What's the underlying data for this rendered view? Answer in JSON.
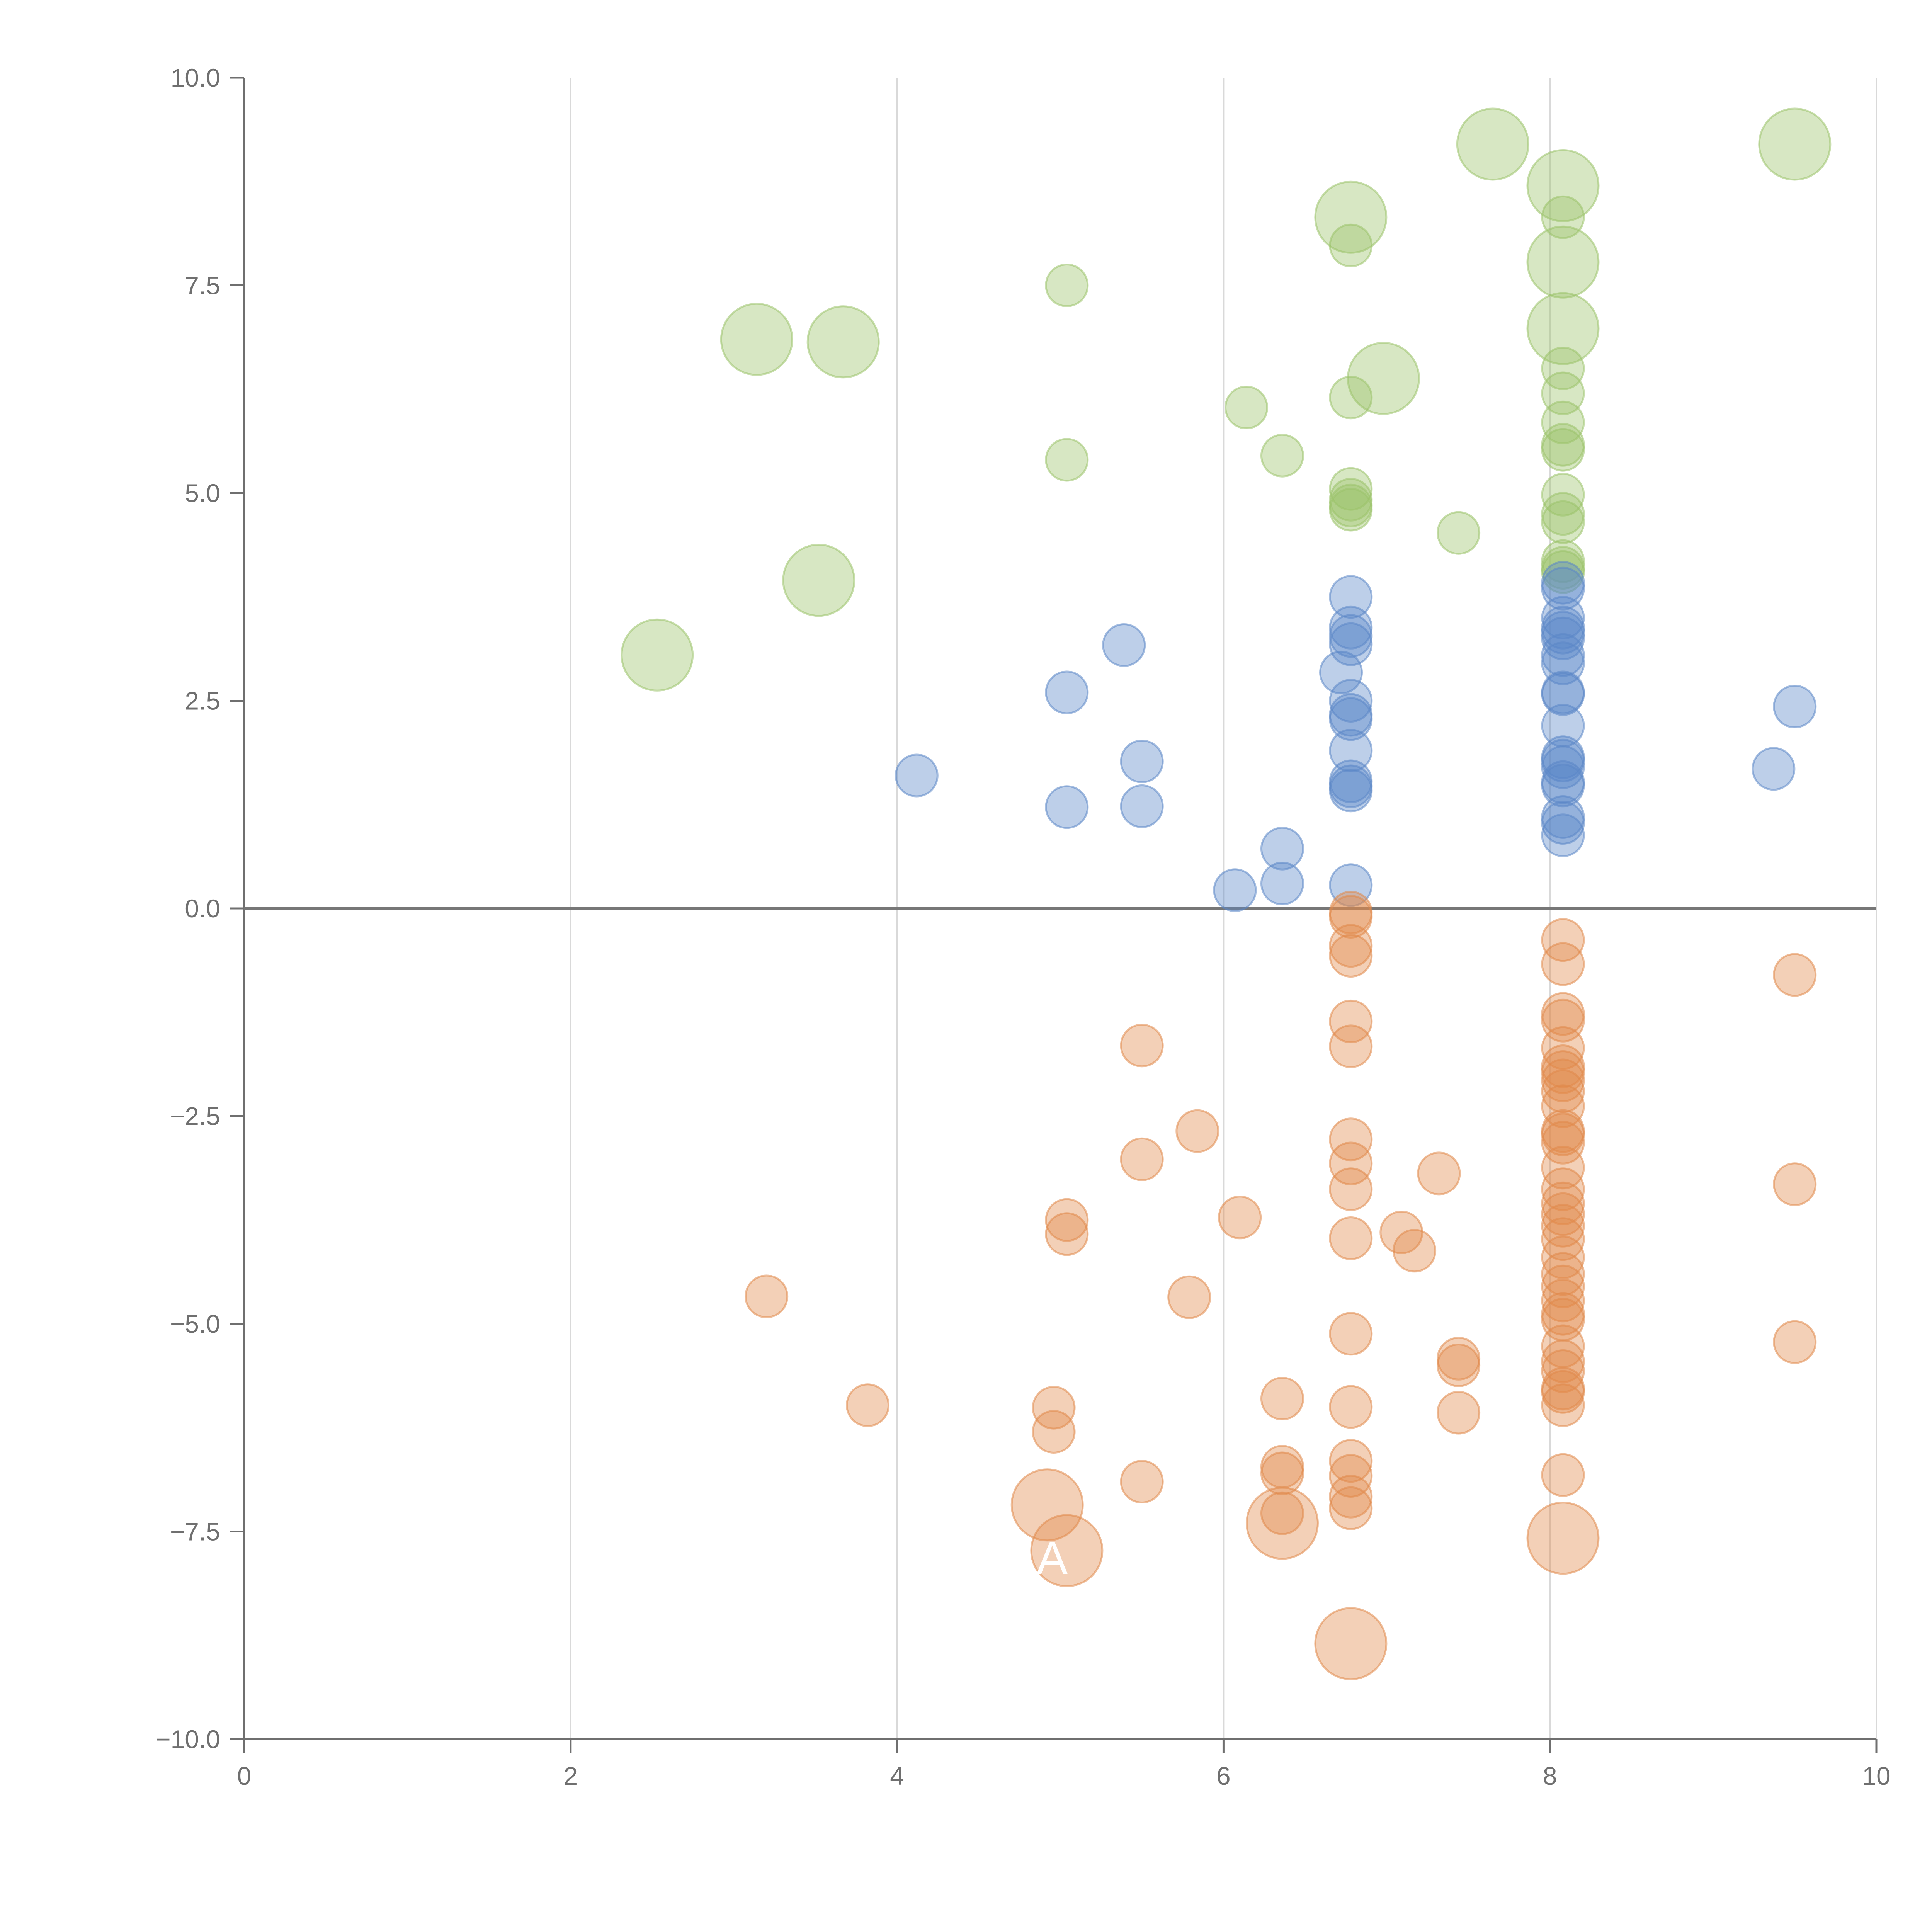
{
  "chart_data": {
    "type": "scatter",
    "title": "",
    "xlabel": "",
    "ylabel": "",
    "xlim": [
      0,
      10
    ],
    "ylim": [
      -10,
      10
    ],
    "grid": {
      "vertical": true,
      "horizontal": false
    },
    "baseline": 0,
    "x_ticks": [
      0,
      2,
      4,
      6,
      8,
      10
    ],
    "x_tick_labels": [
      "0",
      "2",
      "4",
      "6",
      "8",
      "10"
    ],
    "y_ticks": [
      10,
      7.5,
      5,
      2.5,
      0,
      -2.5,
      -5,
      -7.5,
      -10
    ],
    "y_tick_labels": [
      "10.0",
      "7.5",
      "5.0",
      "2.5",
      "0.0",
      "−2.5",
      "−5.0",
      "−7.5",
      "−10.0"
    ],
    "colors": {
      "green": "#9bc36a",
      "blue": "#5b87c7",
      "orange": "#e0894a",
      "axis": "#6f6f6f",
      "grid": "#d9d9d9",
      "baseline": "#777777"
    },
    "series": [
      {
        "name": "green",
        "color": "#9bc36a",
        "points": [
          [
            9.5,
            9.2,
            2
          ],
          [
            7.65,
            9.2,
            2
          ],
          [
            8.08,
            8.7,
            2
          ],
          [
            6.78,
            8.32,
            2
          ],
          [
            8.08,
            7.78,
            2
          ],
          [
            8.08,
            6.98,
            2
          ],
          [
            6.98,
            6.38,
            2
          ],
          [
            3.14,
            6.85,
            2
          ],
          [
            3.67,
            6.82,
            2
          ],
          [
            3.52,
            3.95,
            2
          ],
          [
            2.53,
            3.05,
            2
          ],
          [
            8.08,
            8.32,
            1
          ],
          [
            6.78,
            7.98,
            1
          ],
          [
            5.04,
            7.5,
            1
          ],
          [
            6.14,
            6.03,
            1
          ],
          [
            6.78,
            6.15,
            1
          ],
          [
            5.04,
            5.4,
            1
          ],
          [
            6.36,
            5.45,
            1
          ],
          [
            7.44,
            4.52,
            1
          ],
          [
            6.78,
            5.05,
            1
          ],
          [
            6.78,
            4.92,
            1
          ],
          [
            6.78,
            4.85,
            1
          ],
          [
            6.78,
            4.8,
            1
          ],
          [
            8.08,
            6.5,
            1
          ],
          [
            8.08,
            6.2,
            1
          ],
          [
            8.08,
            5.85,
            1
          ],
          [
            8.08,
            5.58,
            1
          ],
          [
            8.08,
            5.52,
            1
          ],
          [
            8.08,
            4.98,
            1
          ],
          [
            8.08,
            4.75,
            1
          ],
          [
            8.08,
            4.65,
            1
          ],
          [
            8.08,
            4.18,
            1
          ],
          [
            8.08,
            4.1,
            1
          ],
          [
            8.08,
            4.05,
            1
          ]
        ]
      },
      {
        "name": "blue",
        "color": "#5b87c7",
        "points": [
          [
            9.5,
            2.43,
            1
          ],
          [
            9.37,
            1.68,
            1
          ],
          [
            4.12,
            1.6,
            1
          ],
          [
            5.04,
            2.6,
            1
          ],
          [
            5.04,
            1.22,
            1
          ],
          [
            5.39,
            3.17,
            1
          ],
          [
            5.5,
            1.77,
            1
          ],
          [
            5.5,
            1.23,
            1
          ],
          [
            6.07,
            0.22,
            1
          ],
          [
            6.36,
            0.72,
            1
          ],
          [
            6.36,
            0.3,
            1
          ],
          [
            6.72,
            2.84,
            1
          ],
          [
            6.78,
            3.75,
            1
          ],
          [
            6.78,
            3.38,
            1
          ],
          [
            6.78,
            3.28,
            1
          ],
          [
            6.78,
            3.18,
            1
          ],
          [
            6.78,
            2.5,
            1
          ],
          [
            6.78,
            2.33,
            1
          ],
          [
            6.78,
            2.28,
            1
          ],
          [
            6.78,
            1.9,
            1
          ],
          [
            6.78,
            1.53,
            1
          ],
          [
            6.78,
            1.47,
            1
          ],
          [
            6.78,
            1.42,
            1
          ],
          [
            6.78,
            0.28,
            1
          ],
          [
            8.08,
            3.92,
            1
          ],
          [
            8.08,
            3.85,
            1
          ],
          [
            8.08,
            3.5,
            1
          ],
          [
            8.08,
            3.38,
            1
          ],
          [
            8.08,
            3.32,
            1
          ],
          [
            8.08,
            3.25,
            1
          ],
          [
            8.08,
            3.05,
            1
          ],
          [
            8.08,
            2.95,
            1
          ],
          [
            8.08,
            2.6,
            1
          ],
          [
            8.08,
            2.58,
            1
          ],
          [
            8.08,
            2.2,
            1
          ],
          [
            8.08,
            1.82,
            1
          ],
          [
            8.08,
            1.78,
            1
          ],
          [
            8.08,
            1.7,
            1
          ],
          [
            8.08,
            1.52,
            1
          ],
          [
            8.08,
            1.48,
            1
          ],
          [
            8.08,
            1.1,
            1
          ],
          [
            8.08,
            1.03,
            1
          ],
          [
            8.08,
            0.88,
            1
          ]
        ]
      },
      {
        "name": "orange",
        "color": "#e0894a",
        "points": [
          [
            4.92,
            -7.18,
            2
          ],
          [
            5.04,
            -7.73,
            2
          ],
          [
            6.36,
            -7.4,
            2
          ],
          [
            6.78,
            -8.85,
            2
          ],
          [
            8.08,
            -7.58,
            2
          ],
          [
            9.5,
            -0.8,
            1
          ],
          [
            9.5,
            -3.32,
            1
          ],
          [
            9.5,
            -5.22,
            1
          ],
          [
            3.2,
            -4.67,
            1
          ],
          [
            3.82,
            -5.98,
            1
          ],
          [
            4.96,
            -6.01,
            1
          ],
          [
            4.96,
            -6.3,
            1
          ],
          [
            5.04,
            -3.75,
            1
          ],
          [
            5.04,
            -3.92,
            1
          ],
          [
            5.5,
            -1.65,
            1
          ],
          [
            5.5,
            -3.02,
            1
          ],
          [
            5.5,
            -6.9,
            1
          ],
          [
            5.84,
            -2.68,
            1
          ],
          [
            5.79,
            -4.68,
            1
          ],
          [
            6.1,
            -3.72,
            1
          ],
          [
            6.36,
            -5.9,
            1
          ],
          [
            6.36,
            -6.72,
            1
          ],
          [
            6.36,
            -6.8,
            1
          ],
          [
            6.36,
            -7.28,
            1
          ],
          [
            6.78,
            -0.05,
            1
          ],
          [
            6.78,
            -0.1,
            1
          ],
          [
            6.78,
            -0.45,
            1
          ],
          [
            6.78,
            -0.57,
            1
          ],
          [
            6.78,
            -1.36,
            1
          ],
          [
            6.78,
            -1.66,
            1
          ],
          [
            6.78,
            -2.78,
            1
          ],
          [
            6.78,
            -3.07,
            1
          ],
          [
            6.78,
            -3.38,
            1
          ],
          [
            6.78,
            -3.97,
            1
          ],
          [
            6.78,
            -5.12,
            1
          ],
          [
            6.78,
            -6.0,
            1
          ],
          [
            6.78,
            -6.65,
            1
          ],
          [
            6.78,
            -6.83,
            1
          ],
          [
            6.78,
            -7.08,
            1
          ],
          [
            6.78,
            -7.22,
            1
          ],
          [
            7.09,
            -3.9,
            1
          ],
          [
            7.17,
            -4.12,
            1
          ],
          [
            7.32,
            -3.19,
            1
          ],
          [
            7.44,
            -5.42,
            1
          ],
          [
            7.44,
            -5.5,
            1
          ],
          [
            7.44,
            -6.07,
            1
          ],
          [
            8.08,
            -0.38,
            1
          ],
          [
            8.08,
            -0.67,
            1
          ],
          [
            8.08,
            -1.27,
            1
          ],
          [
            8.08,
            -1.35,
            1
          ],
          [
            8.08,
            -1.68,
            1
          ],
          [
            8.08,
            -1.9,
            1
          ],
          [
            8.08,
            -1.97,
            1
          ],
          [
            8.08,
            -2.07,
            1
          ],
          [
            8.08,
            -2.2,
            1
          ],
          [
            8.08,
            -2.38,
            1
          ],
          [
            8.08,
            -2.68,
            1
          ],
          [
            8.08,
            -2.72,
            1
          ],
          [
            8.08,
            -2.82,
            1
          ],
          [
            8.08,
            -3.12,
            1
          ],
          [
            8.08,
            -3.38,
            1
          ],
          [
            8.08,
            -3.55,
            1
          ],
          [
            8.08,
            -3.68,
            1
          ],
          [
            8.08,
            -3.82,
            1
          ],
          [
            8.08,
            -3.98,
            1
          ],
          [
            8.08,
            -4.2,
            1
          ],
          [
            8.08,
            -4.4,
            1
          ],
          [
            8.08,
            -4.55,
            1
          ],
          [
            8.08,
            -4.72,
            1
          ],
          [
            8.08,
            -4.88,
            1
          ],
          [
            8.08,
            -4.95,
            1
          ],
          [
            8.08,
            -5.27,
            1
          ],
          [
            8.08,
            -5.45,
            1
          ],
          [
            8.08,
            -5.57,
            1
          ],
          [
            8.08,
            -5.78,
            1
          ],
          [
            8.08,
            -5.82,
            1
          ],
          [
            8.08,
            -5.98,
            1
          ],
          [
            8.08,
            -6.82,
            1
          ]
        ]
      }
    ],
    "annotations": [
      {
        "text": "A",
        "x": 5.04,
        "y": -7.73
      }
    ]
  }
}
